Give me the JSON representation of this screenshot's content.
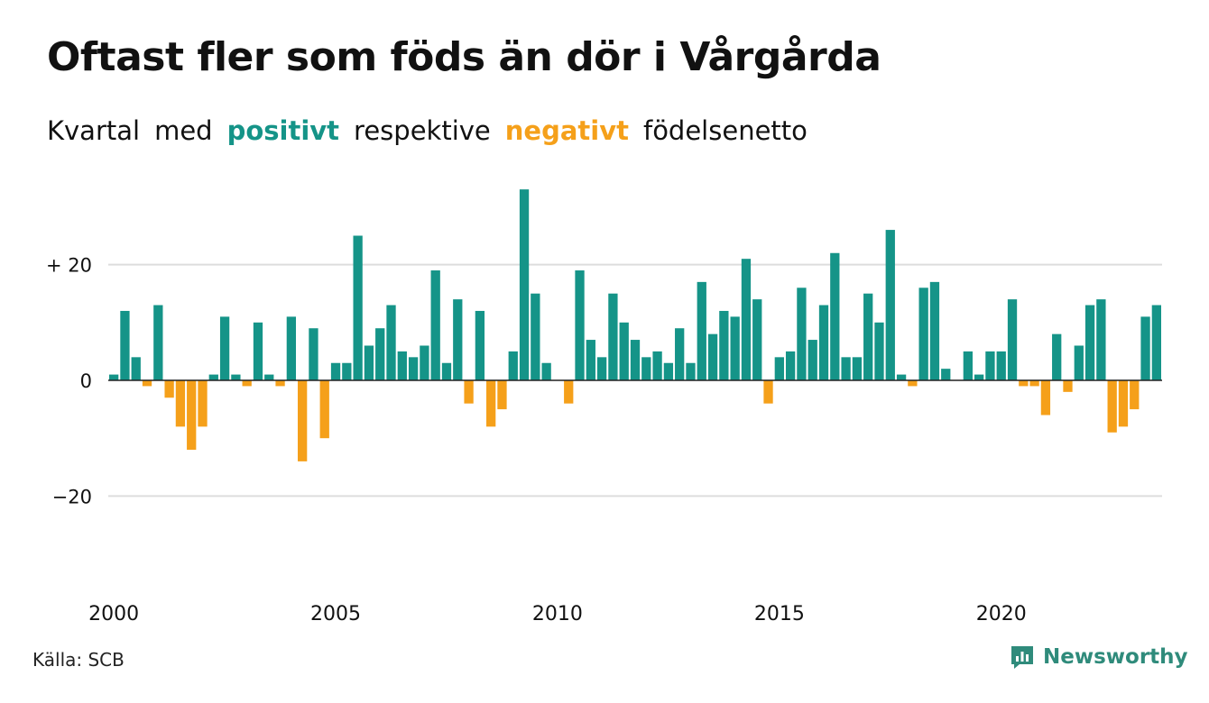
{
  "chart_data": {
    "type": "bar",
    "title": "Oftast fler som föds än dör i Vårgårda",
    "subtitle": {
      "prefix": "Kvartal",
      "mid1": "med",
      "positive_word": "positivt",
      "mid2": "respektive",
      "negative_word": "negativt",
      "suffix": "födelsenetto"
    },
    "x_ticks": [
      "2000",
      "2005",
      "2010",
      "2015",
      "2020"
    ],
    "y_ticks": [
      {
        "value": 20,
        "label": "+ 20"
      },
      {
        "value": 0,
        "label": "0"
      },
      {
        "value": -20,
        "label": "−20"
      }
    ],
    "ylim": [
      -30,
      35
    ],
    "grid": true,
    "first_period": "2000 Q1",
    "series": [
      {
        "values": [
          1,
          12,
          4,
          -1,
          13,
          -3,
          -8,
          -12,
          -8,
          1,
          11,
          1,
          -1,
          10,
          1,
          -1,
          11,
          -14,
          9,
          -10,
          3,
          3,
          25,
          6,
          9,
          13,
          5,
          4,
          6,
          19,
          3,
          14,
          -4,
          12,
          -8,
          -5,
          5,
          33,
          15,
          3,
          0,
          -4,
          19,
          7,
          4,
          15,
          10,
          7,
          4,
          5,
          3,
          9,
          3,
          17,
          8,
          12,
          11,
          21,
          14,
          -4,
          4,
          5,
          16,
          7,
          13,
          22,
          4,
          4,
          15,
          10,
          26,
          1,
          -1,
          16,
          17,
          2,
          0,
          5,
          1,
          5,
          5,
          14,
          -1,
          -1,
          -6,
          8,
          -2,
          6,
          13,
          14,
          -9,
          -8,
          -5,
          11,
          13
        ]
      }
    ],
    "colors": {
      "positive": "#159488",
      "negative": "#f5a01a",
      "grid": "#dddddd",
      "axis": "#222222"
    }
  },
  "footer": {
    "source": "Källa: SCB",
    "brand": "Newsworthy"
  }
}
